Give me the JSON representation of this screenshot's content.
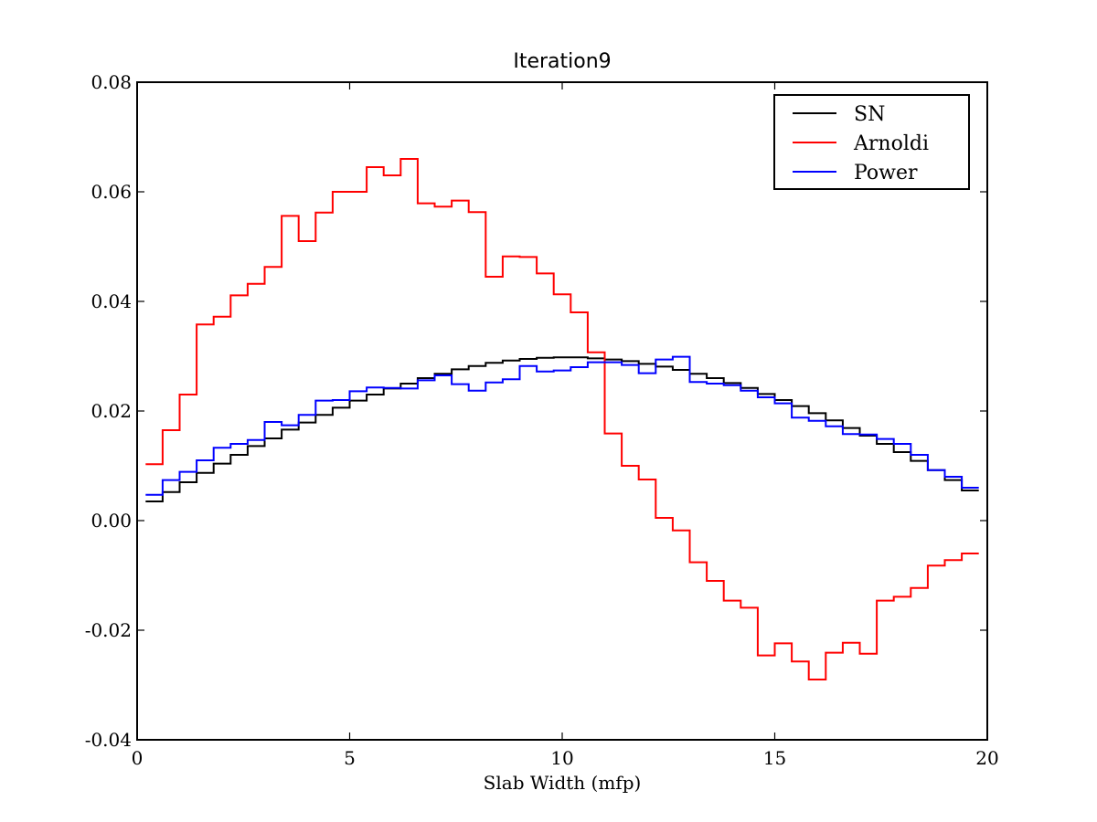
{
  "chart_data": {
    "type": "line",
    "title": "Iteration9",
    "xlabel": "Slab Width (mfp)",
    "ylabel": "",
    "xlim": [
      0,
      20
    ],
    "ylim": [
      -0.04,
      0.08
    ],
    "xticks": [
      0,
      5,
      10,
      15,
      20
    ],
    "xtick_labels": [
      "0",
      "5",
      "10",
      "15",
      "20"
    ],
    "yticks": [
      -0.04,
      -0.02,
      0.0,
      0.02,
      0.04,
      0.06,
      0.08
    ],
    "ytick_labels": [
      "-0.04",
      "-0.02",
      "0.00",
      "0.02",
      "0.04",
      "0.06",
      "0.08"
    ],
    "grid": false,
    "legend_position": "top-right",
    "step_style": "pre",
    "x": [
      0.2,
      0.6,
      1.0,
      1.4,
      1.8,
      2.2,
      2.6,
      3.0,
      3.4,
      3.8,
      4.2,
      4.6,
      5.0,
      5.4,
      5.8,
      6.2,
      6.6,
      7.0,
      7.4,
      7.8,
      8.2,
      8.6,
      9.0,
      9.4,
      9.8,
      10.2,
      10.6,
      11.0,
      11.4,
      11.8,
      12.2,
      12.6,
      13.0,
      13.4,
      13.8,
      14.2,
      14.6,
      15.0,
      15.4,
      15.8,
      16.2,
      16.6,
      17.0,
      17.4,
      17.8,
      18.2,
      18.6,
      19.0,
      19.4,
      19.8
    ],
    "series": [
      {
        "name": "SN",
        "color": "#000000",
        "values": [
          0.0035,
          0.0035,
          0.0052,
          0.007,
          0.0087,
          0.0104,
          0.012,
          0.0136,
          0.015,
          0.0166,
          0.0179,
          0.0193,
          0.0206,
          0.0219,
          0.023,
          0.0241,
          0.025,
          0.026,
          0.0268,
          0.0276,
          0.0282,
          0.0288,
          0.0292,
          0.0295,
          0.0297,
          0.0298,
          0.0298,
          0.0296,
          0.0294,
          0.0291,
          0.0286,
          0.0281,
          0.0275,
          0.0268,
          0.026,
          0.0251,
          0.0242,
          0.0231,
          0.022,
          0.0209,
          0.0196,
          0.0183,
          0.0169,
          0.0155,
          0.014,
          0.0125,
          0.0109,
          0.0092,
          0.0074,
          0.0055
        ]
      },
      {
        "name": "Arnoldi",
        "color": "#ff0000",
        "values": [
          0.0103,
          0.0103,
          0.0165,
          0.023,
          0.0358,
          0.0372,
          0.0411,
          0.0432,
          0.0463,
          0.0556,
          0.051,
          0.0562,
          0.06,
          0.06,
          0.0645,
          0.063,
          0.066,
          0.0579,
          0.0573,
          0.0584,
          0.0563,
          0.0445,
          0.0482,
          0.0481,
          0.0451,
          0.0413,
          0.038,
          0.0307,
          0.0159,
          0.01,
          0.0075,
          0.0005,
          -0.0018,
          -0.0076,
          -0.011,
          -0.0146,
          -0.0159,
          -0.0246,
          -0.0224,
          -0.0257,
          -0.029,
          -0.0241,
          -0.0223,
          -0.0243,
          -0.0146,
          -0.0139,
          -0.0123,
          -0.0082,
          -0.0072,
          -0.006
        ]
      },
      {
        "name": "Power",
        "color": "#0000ff",
        "values": [
          0.0047,
          0.0047,
          0.0074,
          0.0089,
          0.011,
          0.0133,
          0.014,
          0.0147,
          0.018,
          0.0174,
          0.0193,
          0.0219,
          0.022,
          0.0236,
          0.0243,
          0.0242,
          0.0241,
          0.0256,
          0.0265,
          0.0249,
          0.0237,
          0.0252,
          0.0258,
          0.0282,
          0.0272,
          0.0274,
          0.028,
          0.0289,
          0.0289,
          0.0284,
          0.0269,
          0.0294,
          0.0299,
          0.0253,
          0.025,
          0.0247,
          0.0237,
          0.0225,
          0.0214,
          0.0188,
          0.0182,
          0.0172,
          0.0158,
          0.0157,
          0.0149,
          0.014,
          0.012,
          0.0092,
          0.008,
          0.006
        ]
      }
    ]
  }
}
